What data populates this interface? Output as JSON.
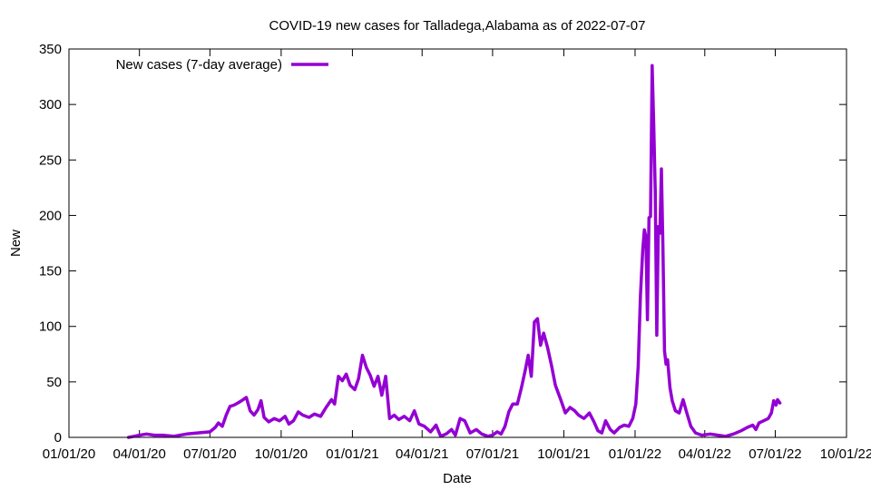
{
  "chart_data": {
    "type": "line",
    "title": "COVID-19 new cases for Talladega,Alabama as of 2022-07-07",
    "xlabel": "Date",
    "ylabel": "New",
    "xlim": [
      "2020-01-01",
      "2022-10-01"
    ],
    "ylim": [
      0,
      350
    ],
    "x_ticks": [
      "01/01/20",
      "04/01/20",
      "07/01/20",
      "10/01/20",
      "01/01/21",
      "04/01/21",
      "07/01/21",
      "10/01/21",
      "01/01/22",
      "04/01/22",
      "07/01/22",
      "10/01/22"
    ],
    "y_ticks": [
      "0",
      "50",
      "100",
      "150",
      "200",
      "250",
      "300",
      "350"
    ],
    "grid": false,
    "legend_position": "top-left",
    "series": [
      {
        "name": "New cases (7-day average)",
        "color": "#9400d3",
        "points": [
          [
            "2020-03-18",
            0
          ],
          [
            "2020-03-25",
            1
          ],
          [
            "2020-04-01",
            2
          ],
          [
            "2020-04-10",
            3
          ],
          [
            "2020-04-20",
            2
          ],
          [
            "2020-05-01",
            2
          ],
          [
            "2020-05-15",
            1
          ],
          [
            "2020-06-01",
            3
          ],
          [
            "2020-06-15",
            4
          ],
          [
            "2020-07-01",
            5
          ],
          [
            "2020-07-08",
            9
          ],
          [
            "2020-07-12",
            13
          ],
          [
            "2020-07-17",
            10
          ],
          [
            "2020-07-22",
            20
          ],
          [
            "2020-07-27",
            28
          ],
          [
            "2020-08-01",
            29
          ],
          [
            "2020-08-06",
            31
          ],
          [
            "2020-08-11",
            33
          ],
          [
            "2020-08-17",
            36
          ],
          [
            "2020-08-22",
            24
          ],
          [
            "2020-08-27",
            20
          ],
          [
            "2020-09-01",
            25
          ],
          [
            "2020-09-05",
            33
          ],
          [
            "2020-09-09",
            18
          ],
          [
            "2020-09-15",
            14
          ],
          [
            "2020-09-22",
            17
          ],
          [
            "2020-09-29",
            15
          ],
          [
            "2020-10-06",
            19
          ],
          [
            "2020-10-11",
            12
          ],
          [
            "2020-10-17",
            15
          ],
          [
            "2020-10-23",
            23
          ],
          [
            "2020-10-29",
            20
          ],
          [
            "2020-11-06",
            18
          ],
          [
            "2020-11-13",
            21
          ],
          [
            "2020-11-21",
            19
          ],
          [
            "2020-11-28",
            27
          ],
          [
            "2020-12-05",
            34
          ],
          [
            "2020-12-09",
            30
          ],
          [
            "2020-12-14",
            55
          ],
          [
            "2020-12-19",
            51
          ],
          [
            "2020-12-24",
            57
          ],
          [
            "2020-12-29",
            47
          ],
          [
            "2021-01-04",
            43
          ],
          [
            "2021-01-09",
            53
          ],
          [
            "2021-01-14",
            74
          ],
          [
            "2021-01-19",
            63
          ],
          [
            "2021-01-24",
            56
          ],
          [
            "2021-01-29",
            46
          ],
          [
            "2021-02-03",
            55
          ],
          [
            "2021-02-08",
            38
          ],
          [
            "2021-02-13",
            55
          ],
          [
            "2021-02-18",
            17
          ],
          [
            "2021-02-24",
            20
          ],
          [
            "2021-03-02",
            16
          ],
          [
            "2021-03-09",
            19
          ],
          [
            "2021-03-16",
            15
          ],
          [
            "2021-03-22",
            24
          ],
          [
            "2021-03-28",
            12
          ],
          [
            "2021-04-04",
            10
          ],
          [
            "2021-04-12",
            5
          ],
          [
            "2021-04-19",
            11
          ],
          [
            "2021-04-25",
            1
          ],
          [
            "2021-05-02",
            3
          ],
          [
            "2021-05-09",
            7
          ],
          [
            "2021-05-14",
            2
          ],
          [
            "2021-05-20",
            17
          ],
          [
            "2021-05-26",
            15
          ],
          [
            "2021-06-02",
            4
          ],
          [
            "2021-06-10",
            7
          ],
          [
            "2021-06-17",
            3
          ],
          [
            "2021-06-25",
            1
          ],
          [
            "2021-07-01",
            2
          ],
          [
            "2021-07-07",
            5
          ],
          [
            "2021-07-12",
            3
          ],
          [
            "2021-07-17",
            10
          ],
          [
            "2021-07-22",
            23
          ],
          [
            "2021-07-27",
            30
          ],
          [
            "2021-08-02",
            30
          ],
          [
            "2021-08-07",
            44
          ],
          [
            "2021-08-12",
            60
          ],
          [
            "2021-08-16",
            74
          ],
          [
            "2021-08-20",
            55
          ],
          [
            "2021-08-24",
            104
          ],
          [
            "2021-08-28",
            107
          ],
          [
            "2021-09-01",
            83
          ],
          [
            "2021-09-05",
            94
          ],
          [
            "2021-09-10",
            81
          ],
          [
            "2021-09-15",
            65
          ],
          [
            "2021-09-20",
            47
          ],
          [
            "2021-09-27",
            34
          ],
          [
            "2021-10-03",
            22
          ],
          [
            "2021-10-09",
            27
          ],
          [
            "2021-10-15",
            24
          ],
          [
            "2021-10-20",
            20
          ],
          [
            "2021-10-27",
            17
          ],
          [
            "2021-11-03",
            22
          ],
          [
            "2021-11-09",
            14
          ],
          [
            "2021-11-14",
            6
          ],
          [
            "2021-11-19",
            4
          ],
          [
            "2021-11-24",
            15
          ],
          [
            "2021-11-30",
            7
          ],
          [
            "2021-12-05",
            4
          ],
          [
            "2021-12-12",
            9
          ],
          [
            "2021-12-18",
            11
          ],
          [
            "2021-12-24",
            10
          ],
          [
            "2021-12-29",
            17
          ],
          [
            "2022-01-02",
            30
          ],
          [
            "2022-01-05",
            64
          ],
          [
            "2022-01-08",
            128
          ],
          [
            "2022-01-11",
            170
          ],
          [
            "2022-01-13",
            187
          ],
          [
            "2022-01-15",
            181
          ],
          [
            "2022-01-17",
            106
          ],
          [
            "2022-01-19",
            198
          ],
          [
            "2022-01-21",
            199
          ],
          [
            "2022-01-23",
            335
          ],
          [
            "2022-01-25",
            283
          ],
          [
            "2022-01-27",
            222
          ],
          [
            "2022-01-29",
            92
          ],
          [
            "2022-01-31",
            190
          ],
          [
            "2022-02-02",
            184
          ],
          [
            "2022-02-04",
            242
          ],
          [
            "2022-02-06",
            170
          ],
          [
            "2022-02-08",
            78
          ],
          [
            "2022-02-10",
            66
          ],
          [
            "2022-02-12",
            70
          ],
          [
            "2022-02-15",
            45
          ],
          [
            "2022-02-18",
            33
          ],
          [
            "2022-02-22",
            24
          ],
          [
            "2022-02-27",
            22
          ],
          [
            "2022-03-04",
            34
          ],
          [
            "2022-03-08",
            24
          ],
          [
            "2022-03-14",
            10
          ],
          [
            "2022-03-20",
            4
          ],
          [
            "2022-03-28",
            2
          ],
          [
            "2022-04-08",
            3
          ],
          [
            "2022-04-18",
            2
          ],
          [
            "2022-04-28",
            1
          ],
          [
            "2022-05-08",
            3
          ],
          [
            "2022-05-18",
            6
          ],
          [
            "2022-05-26",
            9
          ],
          [
            "2022-06-02",
            11
          ],
          [
            "2022-06-06",
            7
          ],
          [
            "2022-06-10",
            13
          ],
          [
            "2022-06-16",
            15
          ],
          [
            "2022-06-22",
            17
          ],
          [
            "2022-06-26",
            22
          ],
          [
            "2022-06-29",
            33
          ],
          [
            "2022-07-02",
            29
          ],
          [
            "2022-07-04",
            34
          ],
          [
            "2022-07-07",
            31
          ]
        ]
      }
    ]
  }
}
